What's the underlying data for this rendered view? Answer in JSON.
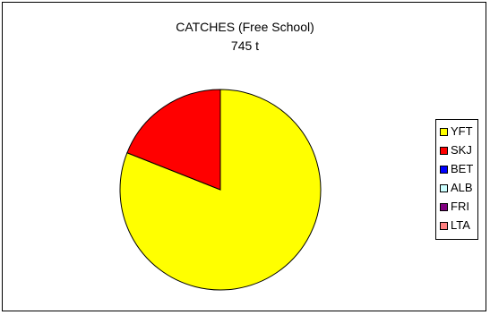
{
  "chart_data": {
    "type": "pie",
    "title": "CATCHES (Free School)",
    "subtitle": "745 t",
    "categories": [
      "YFT",
      "SKJ",
      "BET",
      "ALB",
      "FRI",
      "LTA"
    ],
    "values": [
      81,
      19,
      0,
      0,
      0,
      0
    ],
    "colors": [
      "#FFFF00",
      "#FF0000",
      "#0000FF",
      "#CCFFFF",
      "#800080",
      "#FF8080"
    ],
    "legend_position": "right"
  }
}
